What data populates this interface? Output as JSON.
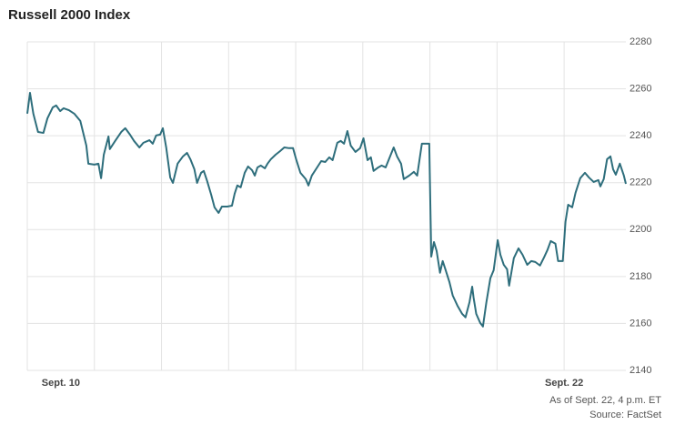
{
  "chart_data": {
    "type": "line",
    "title": "Russell 2000 Index",
    "notes": [
      "As of Sept. 22, 4 p.m. ET",
      "Source: FactSet"
    ],
    "color": "#2e6e7c",
    "grid": true,
    "ylim": [
      2140,
      2280
    ],
    "yticks": [
      2140,
      2160,
      2180,
      2200,
      2220,
      2240,
      2260,
      2280
    ],
    "xlim": [
      0,
      8.92
    ],
    "xgrid": [
      0,
      1,
      2,
      3,
      4,
      5,
      6,
      7,
      8
    ],
    "xticks": [
      {
        "value": 0.5,
        "label": "Sept. 10"
      },
      {
        "value": 8,
        "label": "Sept. 22"
      }
    ],
    "x": [
      0,
      0.04,
      0.09,
      0.16,
      0.24,
      0.3,
      0.38,
      0.43,
      0.49,
      0.54,
      0.62,
      0.7,
      0.79,
      0.88,
      0.91,
      1.0,
      1.06,
      1.1,
      1.14,
      1.21,
      1.23,
      1.31,
      1.4,
      1.46,
      1.53,
      1.59,
      1.67,
      1.73,
      1.82,
      1.87,
      1.92,
      1.98,
      2.02,
      2.07,
      2.13,
      2.17,
      2.24,
      2.32,
      2.38,
      2.43,
      2.49,
      2.53,
      2.59,
      2.63,
      2.68,
      2.74,
      2.79,
      2.85,
      2.9,
      2.98,
      3.05,
      3.09,
      3.13,
      3.18,
      3.24,
      3.29,
      3.35,
      3.39,
      3.43,
      3.48,
      3.54,
      3.58,
      3.63,
      3.7,
      3.77,
      3.83,
      3.9,
      3.96,
      4.01,
      4.07,
      4.15,
      4.19,
      4.24,
      4.31,
      4.38,
      4.44,
      4.5,
      4.55,
      4.62,
      4.67,
      4.72,
      4.77,
      4.82,
      4.89,
      4.96,
      5.01,
      5.07,
      5.12,
      5.16,
      5.23,
      5.28,
      5.34,
      5.39,
      5.46,
      5.51,
      5.57,
      5.61,
      5.69,
      5.76,
      5.81,
      5.88,
      5.99,
      6.02,
      6.06,
      6.1,
      6.15,
      6.19,
      6.23,
      6.29,
      6.34,
      6.41,
      6.48,
      6.53,
      6.59,
      6.63,
      6.65,
      6.69,
      6.75,
      6.79,
      6.84,
      6.9,
      6.95,
      7.01,
      7.05,
      7.1,
      7.15,
      7.18,
      7.25,
      7.32,
      7.38,
      7.45,
      7.51,
      7.57,
      7.64,
      7.7,
      7.75,
      7.8,
      7.87,
      7.91,
      7.98,
      8.02,
      8.06,
      8.12,
      8.17,
      8.24,
      8.31,
      8.37,
      8.44,
      8.51,
      8.54,
      8.59,
      8.64,
      8.69,
      8.73,
      8.77,
      8.83,
      8.89,
      8.92
    ],
    "values": [
      2249.4,
      2258.3,
      2249.4,
      2241.6,
      2241.2,
      2247.4,
      2252.1,
      2252.9,
      2250.5,
      2251.7,
      2250.9,
      2249.4,
      2246.3,
      2235.8,
      2228.1,
      2227.7,
      2228.1,
      2221.9,
      2231.9,
      2239.7,
      2234.3,
      2237.8,
      2241.6,
      2243.2,
      2240.5,
      2237.8,
      2235.0,
      2237.0,
      2238.1,
      2236.6,
      2240.1,
      2240.5,
      2243.2,
      2235.0,
      2222.2,
      2219.9,
      2228.1,
      2231.2,
      2232.7,
      2230.0,
      2225.7,
      2219.9,
      2224.2,
      2225.0,
      2220.7,
      2214.9,
      2209.5,
      2207.1,
      2209.8,
      2209.8,
      2210.2,
      2215.3,
      2218.8,
      2218.0,
      2224.2,
      2226.9,
      2225.3,
      2223.0,
      2226.5,
      2227.3,
      2226.1,
      2228.1,
      2230.0,
      2231.9,
      2233.5,
      2235.0,
      2234.7,
      2234.7,
      2229.6,
      2224.2,
      2221.5,
      2218.8,
      2223.0,
      2226.1,
      2229.2,
      2228.8,
      2230.8,
      2229.6,
      2237.0,
      2237.8,
      2236.6,
      2242.0,
      2235.8,
      2233.1,
      2234.7,
      2238.9,
      2229.6,
      2230.8,
      2225.0,
      2226.5,
      2227.3,
      2226.5,
      2230.0,
      2235.0,
      2231.2,
      2228.1,
      2221.5,
      2223.0,
      2224.6,
      2223.0,
      2236.6,
      2236.6,
      2188.5,
      2194.7,
      2190.9,
      2181.6,
      2186.6,
      2183.1,
      2177.7,
      2171.9,
      2167.6,
      2164.1,
      2162.6,
      2169.1,
      2175.7,
      2171.1,
      2164.1,
      2160.2,
      2158.7,
      2168.8,
      2179.2,
      2182.7,
      2195.5,
      2189.3,
      2185.0,
      2183.1,
      2176.1,
      2187.8,
      2192.0,
      2189.3,
      2185.0,
      2186.6,
      2186.2,
      2184.7,
      2188.1,
      2191.2,
      2195.1,
      2194.0,
      2186.6,
      2186.6,
      2203.3,
      2210.6,
      2209.5,
      2215.7,
      2221.9,
      2224.2,
      2222.2,
      2220.3,
      2221.1,
      2218.4,
      2221.5,
      2230.0,
      2231.2,
      2225.7,
      2223.4,
      2228.1,
      2223.0,
      2219.5
    ]
  }
}
